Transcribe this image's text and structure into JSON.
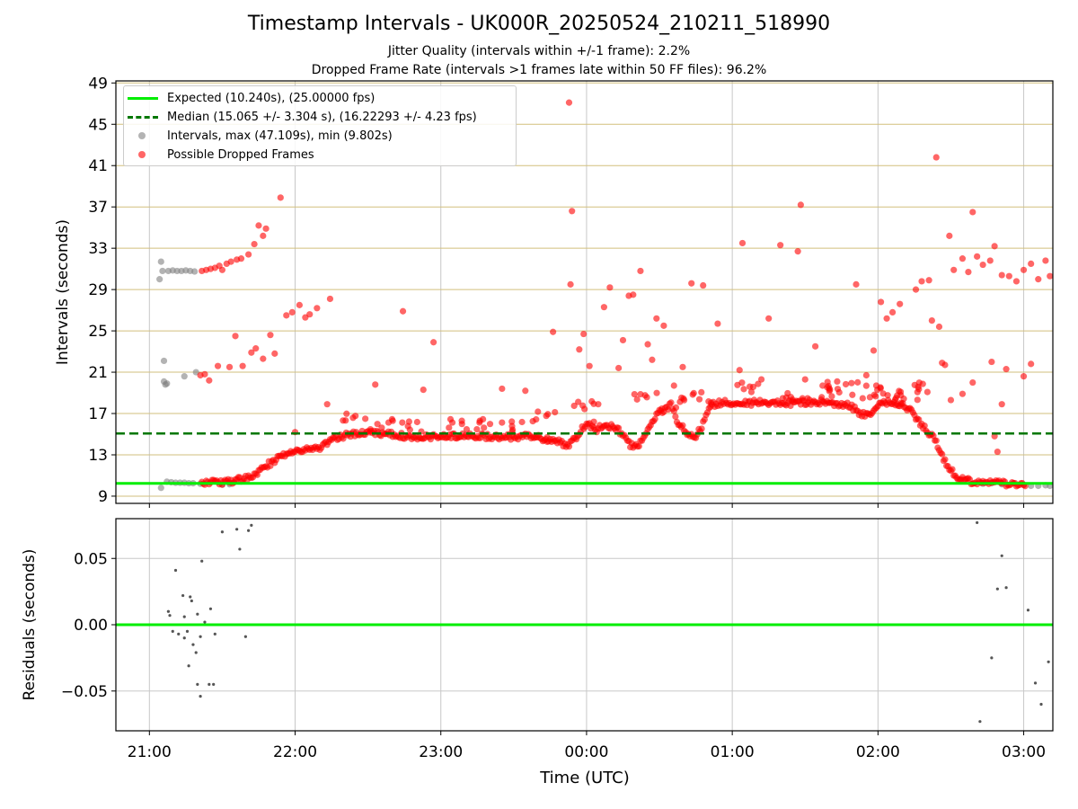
{
  "title": "Timestamp Intervals - UK000R_20250524_210211_518990",
  "subtitle_1": "Jitter Quality (intervals within +/-1 frame): 2.2%",
  "subtitle_2": "Dropped Frame Rate (intervals >1 frames late within 50 FF files): 96.2%",
  "colors": {
    "expected": "#00ee00",
    "median": "#007700",
    "intervals": "#808080",
    "dropped": "#ff0000",
    "hgrid": "#d2bf7d",
    "vgrid": "#c8c8c8"
  },
  "chart_data": [
    {
      "type": "scatter",
      "ylabel": "Intervals (seconds)",
      "xlabel": "",
      "yticks": [
        "9",
        "13",
        "17",
        "21",
        "25",
        "29",
        "33",
        "37",
        "41",
        "45",
        "49"
      ],
      "xtick_labels": [
        "21:00",
        "22:00",
        "23:00",
        "00:00",
        "01:00",
        "02:00",
        "03:00"
      ],
      "ylim": [
        8.3,
        49.2
      ],
      "xlim_hours": [
        20.77,
        27.2
      ],
      "grid": true,
      "legend_position": "upper-left",
      "expected_line": 10.24,
      "median_line": 15.065,
      "legend": {
        "expected": "Expected (10.240s), (25.00000 fps)",
        "median": "Median (15.065 +/- 3.304 s), (16.22293 +/- 4.23 fps)",
        "intervals": "Intervals, max (47.109s), min (9.802s)",
        "dropped": "Possible Dropped Frames"
      },
      "intervals_points": [
        [
          21.07,
          30.0
        ],
        [
          21.08,
          31.7
        ],
        [
          21.09,
          30.8
        ],
        [
          21.1,
          22.1
        ],
        [
          21.1,
          20.1
        ],
        [
          21.11,
          19.8
        ],
        [
          21.12,
          19.9
        ],
        [
          21.08,
          9.8
        ],
        [
          21.12,
          10.4
        ],
        [
          21.15,
          10.35
        ],
        [
          21.18,
          10.3
        ],
        [
          21.21,
          10.3
        ],
        [
          21.24,
          10.3
        ],
        [
          21.27,
          10.25
        ],
        [
          21.3,
          10.25
        ],
        [
          21.35,
          10.2
        ],
        [
          21.13,
          30.8
        ],
        [
          21.16,
          30.85
        ],
        [
          21.19,
          30.8
        ],
        [
          21.22,
          30.8
        ],
        [
          21.25,
          30.85
        ],
        [
          21.28,
          30.8
        ],
        [
          21.31,
          30.75
        ],
        [
          21.24,
          20.6
        ],
        [
          21.32,
          21.0
        ],
        [
          21.5,
          10.1
        ],
        [
          21.55,
          10.15
        ],
        [
          26.72,
          10.2
        ],
        [
          26.78,
          10.25
        ],
        [
          26.85,
          10.15
        ],
        [
          27.0,
          10.1
        ],
        [
          27.05,
          10.0
        ],
        [
          27.1,
          10.0
        ],
        [
          27.15,
          10.05
        ],
        [
          27.18,
          10.0
        ]
      ],
      "dropped_points": [
        [
          21.36,
          30.8
        ],
        [
          21.39,
          30.9
        ],
        [
          21.42,
          31.0
        ],
        [
          21.45,
          31.1
        ],
        [
          21.48,
          31.3
        ],
        [
          21.5,
          30.9
        ],
        [
          21.53,
          31.5
        ],
        [
          21.56,
          31.7
        ],
        [
          21.6,
          31.9
        ],
        [
          21.63,
          32.0
        ],
        [
          21.68,
          32.4
        ],
        [
          21.72,
          33.4
        ],
        [
          21.75,
          35.2
        ],
        [
          21.78,
          34.2
        ],
        [
          21.8,
          34.9
        ],
        [
          21.9,
          37.9
        ],
        [
          21.35,
          20.7
        ],
        [
          21.38,
          20.8
        ],
        [
          21.41,
          20.2
        ],
        [
          21.47,
          21.6
        ],
        [
          21.55,
          21.5
        ],
        [
          21.59,
          24.5
        ],
        [
          21.64,
          21.6
        ],
        [
          21.7,
          22.9
        ],
        [
          21.73,
          23.3
        ],
        [
          21.78,
          22.3
        ],
        [
          21.83,
          24.6
        ],
        [
          21.86,
          22.8
        ],
        [
          21.94,
          26.5
        ],
        [
          21.98,
          26.8
        ],
        [
          22.03,
          27.5
        ],
        [
          22.07,
          26.3
        ],
        [
          22.1,
          26.6
        ],
        [
          22.15,
          27.2
        ],
        [
          22.24,
          28.1
        ],
        [
          22.0,
          15.2
        ],
        [
          22.22,
          17.9
        ],
        [
          22.55,
          19.8
        ],
        [
          22.74,
          26.9
        ],
        [
          22.88,
          19.3
        ],
        [
          22.95,
          23.9
        ],
        [
          23.42,
          19.4
        ],
        [
          23.58,
          19.2
        ],
        [
          23.73,
          14.7
        ],
        [
          23.77,
          24.9
        ],
        [
          23.89,
          29.5
        ],
        [
          23.88,
          47.1
        ],
        [
          23.9,
          36.6
        ],
        [
          23.95,
          23.2
        ],
        [
          23.98,
          24.7
        ],
        [
          24.02,
          21.6
        ],
        [
          24.05,
          16.2
        ],
        [
          24.08,
          17.9
        ],
        [
          24.12,
          27.3
        ],
        [
          24.16,
          29.2
        ],
        [
          24.22,
          21.4
        ],
        [
          24.25,
          24.1
        ],
        [
          24.29,
          28.4
        ],
        [
          24.32,
          28.5
        ],
        [
          24.37,
          30.8
        ],
        [
          24.42,
          23.7
        ],
        [
          24.45,
          22.2
        ],
        [
          24.48,
          26.2
        ],
        [
          24.53,
          25.5
        ],
        [
          24.6,
          19.7
        ],
        [
          24.66,
          21.5
        ],
        [
          24.72,
          29.6
        ],
        [
          24.8,
          29.4
        ],
        [
          24.9,
          25.7
        ],
        [
          25.05,
          21.2
        ],
        [
          25.07,
          33.5
        ],
        [
          25.12,
          19.6
        ],
        [
          25.2,
          20.3
        ],
        [
          25.25,
          26.2
        ],
        [
          25.33,
          33.3
        ],
        [
          25.45,
          32.7
        ],
        [
          25.47,
          37.2
        ],
        [
          25.5,
          20.3
        ],
        [
          25.57,
          23.5
        ],
        [
          25.62,
          19.7
        ],
        [
          25.72,
          20.1
        ],
        [
          25.85,
          29.5
        ],
        [
          25.92,
          20.7
        ],
        [
          25.97,
          23.1
        ],
        [
          26.02,
          27.8
        ],
        [
          26.06,
          26.2
        ],
        [
          26.1,
          26.8
        ],
        [
          26.15,
          27.6
        ],
        [
          26.26,
          29.0
        ],
        [
          26.3,
          29.8
        ],
        [
          26.35,
          29.9
        ],
        [
          26.37,
          26.0
        ],
        [
          26.4,
          41.8
        ],
        [
          26.42,
          25.4
        ],
        [
          26.44,
          21.9
        ],
        [
          26.46,
          21.7
        ],
        [
          26.49,
          34.2
        ],
        [
          26.52,
          30.9
        ],
        [
          26.58,
          32.0
        ],
        [
          26.62,
          30.7
        ],
        [
          26.65,
          36.5
        ],
        [
          26.68,
          32.2
        ],
        [
          26.72,
          31.4
        ],
        [
          26.77,
          31.8
        ],
        [
          26.8,
          33.2
        ],
        [
          26.85,
          30.4
        ],
        [
          26.9,
          30.3
        ],
        [
          26.95,
          29.8
        ],
        [
          27.0,
          30.9
        ],
        [
          27.05,
          31.5
        ],
        [
          27.1,
          30.0
        ],
        [
          27.15,
          31.8
        ],
        [
          27.18,
          30.3
        ],
        [
          26.8,
          14.8
        ],
        [
          26.82,
          13.3
        ],
        [
          26.85,
          17.9
        ],
        [
          27.0,
          20.6
        ],
        [
          27.05,
          21.8
        ],
        [
          26.5,
          18.3
        ],
        [
          26.58,
          18.9
        ],
        [
          26.65,
          20.0
        ],
        [
          26.78,
          22.0
        ],
        [
          26.88,
          21.3
        ]
      ],
      "dropped_curve": [
        [
          21.36,
          10.2
        ],
        [
          21.45,
          10.35
        ],
        [
          21.55,
          10.4
        ],
        [
          21.62,
          10.6
        ],
        [
          21.68,
          10.8
        ],
        [
          21.73,
          11.2
        ],
        [
          21.78,
          11.7
        ],
        [
          21.84,
          12.3
        ],
        [
          21.9,
          12.8
        ],
        [
          21.97,
          13.3
        ],
        [
          22.05,
          13.5
        ],
        [
          22.12,
          13.4
        ],
        [
          22.18,
          13.8
        ],
        [
          22.25,
          14.4
        ],
        [
          22.32,
          14.8
        ],
        [
          22.4,
          15.0
        ],
        [
          22.5,
          15.1
        ],
        [
          22.6,
          15.05
        ],
        [
          22.7,
          14.9
        ],
        [
          22.8,
          14.75
        ],
        [
          22.9,
          14.7
        ],
        [
          23.0,
          14.75
        ],
        [
          23.1,
          14.85
        ],
        [
          23.2,
          14.85
        ],
        [
          23.3,
          14.8
        ],
        [
          23.4,
          14.75
        ],
        [
          23.5,
          14.7
        ],
        [
          23.6,
          14.8
        ],
        [
          23.7,
          14.6
        ],
        [
          23.8,
          14.3
        ],
        [
          23.87,
          13.8
        ],
        [
          23.92,
          14.5
        ],
        [
          23.97,
          15.6
        ],
        [
          24.02,
          16.0
        ],
        [
          24.06,
          15.2
        ],
        [
          24.1,
          15.8
        ],
        [
          24.14,
          15.6
        ],
        [
          24.18,
          15.9
        ],
        [
          24.22,
          15.4
        ],
        [
          24.25,
          14.9
        ],
        [
          24.28,
          14.2
        ],
        [
          24.32,
          13.8
        ],
        [
          24.36,
          14.0
        ],
        [
          24.4,
          14.6
        ],
        [
          24.45,
          16.2
        ],
        [
          24.5,
          17.2
        ],
        [
          24.55,
          17.5
        ],
        [
          24.58,
          17.8
        ],
        [
          24.62,
          16.2
        ],
        [
          24.66,
          15.6
        ],
        [
          24.7,
          15.0
        ],
        [
          24.74,
          14.7
        ],
        [
          24.78,
          15.4
        ],
        [
          24.82,
          16.8
        ],
        [
          24.87,
          17.9
        ],
        [
          24.92,
          18.0
        ],
        [
          25.0,
          18.1
        ],
        [
          25.1,
          18.0
        ],
        [
          25.2,
          18.1
        ],
        [
          25.3,
          18.1
        ],
        [
          25.4,
          18.0
        ],
        [
          25.5,
          18.05
        ],
        [
          25.6,
          18.1
        ],
        [
          25.7,
          18.0
        ],
        [
          25.8,
          17.8
        ],
        [
          25.87,
          17.1
        ],
        [
          25.92,
          16.8
        ],
        [
          25.97,
          17.2
        ],
        [
          26.02,
          18.0
        ],
        [
          26.08,
          18.1
        ],
        [
          26.14,
          18.0
        ],
        [
          26.19,
          17.7
        ],
        [
          26.24,
          17.0
        ],
        [
          26.28,
          16.2
        ],
        [
          26.33,
          15.4
        ],
        [
          26.38,
          14.8
        ],
        [
          26.43,
          13.2
        ],
        [
          26.47,
          12.2
        ],
        [
          26.52,
          11.2
        ],
        [
          26.57,
          10.6
        ],
        [
          26.65,
          10.4
        ],
        [
          26.72,
          10.3
        ],
        [
          26.8,
          10.3
        ],
        [
          26.88,
          10.2
        ],
        [
          26.95,
          10.2
        ],
        [
          27.02,
          10.15
        ]
      ],
      "dropped_scatter_band": [
        [
          23.7,
          17.0
        ],
        [
          24.0,
          18.0
        ],
        [
          24.4,
          18.5
        ],
        [
          24.6,
          18.2
        ],
        [
          24.8,
          18.8
        ],
        [
          25.1,
          19.5
        ],
        [
          25.4,
          18.6
        ],
        [
          25.6,
          19.2
        ],
        [
          25.9,
          19.4
        ],
        [
          26.1,
          19.0
        ],
        [
          26.2,
          18.7
        ],
        [
          22.4,
          16.7
        ],
        [
          22.6,
          16.2
        ],
        [
          22.8,
          16.0
        ],
        [
          23.1,
          16.2
        ],
        [
          23.3,
          16.2
        ],
        [
          23.5,
          16.0
        ],
        [
          25.7,
          19.8
        ],
        [
          25.95,
          19.2
        ],
        [
          26.25,
          19.5
        ]
      ]
    },
    {
      "type": "scatter",
      "ylabel": "Residuals (seconds)",
      "xlabel": "Time (UTC)",
      "yticks": [
        "0.05",
        "0.00",
        "−0.05"
      ],
      "ylim": [
        -0.08,
        0.08
      ],
      "zero_line": 0.0,
      "points": [
        [
          21.18,
          0.041
        ],
        [
          21.23,
          0.022
        ],
        [
          21.28,
          0.021
        ],
        [
          21.24,
          0.006
        ],
        [
          21.33,
          0.008
        ],
        [
          21.36,
          0.048
        ],
        [
          21.38,
          0.002
        ],
        [
          21.35,
          -0.009
        ],
        [
          21.42,
          0.012
        ],
        [
          21.3,
          -0.015
        ],
        [
          21.32,
          -0.021
        ],
        [
          21.33,
          -0.045
        ],
        [
          21.35,
          -0.054
        ],
        [
          21.41,
          -0.045
        ],
        [
          21.44,
          -0.045
        ],
        [
          21.45,
          -0.007
        ],
        [
          21.5,
          0.07
        ],
        [
          21.6,
          0.072
        ],
        [
          21.62,
          0.057
        ],
        [
          21.68,
          0.071
        ],
        [
          21.7,
          0.075
        ],
        [
          21.66,
          -0.009
        ],
        [
          21.13,
          0.01
        ],
        [
          21.14,
          0.007
        ],
        [
          21.16,
          -0.005
        ],
        [
          21.2,
          -0.007
        ],
        [
          21.26,
          -0.005
        ],
        [
          21.24,
          -0.01
        ],
        [
          21.27,
          -0.031
        ],
        [
          21.29,
          0.018
        ],
        [
          26.68,
          0.077
        ],
        [
          26.78,
          -0.025
        ],
        [
          26.82,
          0.027
        ],
        [
          26.85,
          0.052
        ],
        [
          26.88,
          0.028
        ],
        [
          27.03,
          0.011
        ],
        [
          27.08,
          -0.044
        ],
        [
          27.12,
          -0.06
        ],
        [
          27.17,
          -0.028
        ],
        [
          26.7,
          -0.073
        ]
      ]
    }
  ]
}
